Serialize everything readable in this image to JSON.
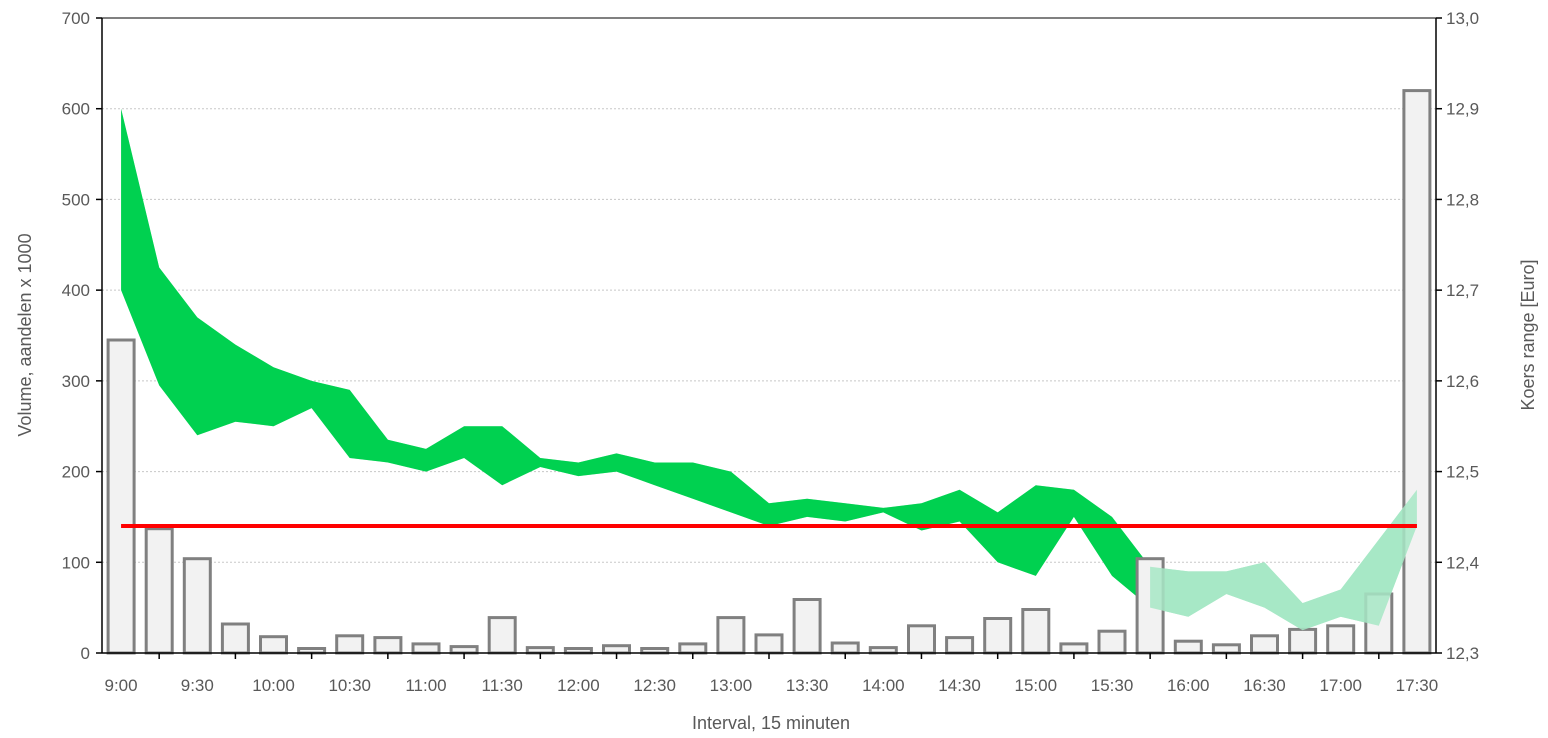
{
  "chart_data": {
    "type": "bar",
    "title": "",
    "xlabel": "Interval, 15 minuten",
    "ylabel_left": "Volume, aandelen x 1000",
    "ylabel_right": "Koers range [Euro]",
    "y_left_lim": [
      0,
      700
    ],
    "y_left_ticks": [
      "0",
      "100",
      "200",
      "300",
      "400",
      "500",
      "600",
      "700"
    ],
    "y_right_lim": [
      12.3,
      13.0
    ],
    "y_right_ticks": [
      "12,3",
      "12,4",
      "12,5",
      "12,6",
      "12,7",
      "12,8",
      "12,9",
      "13,0"
    ],
    "x_tick_labels": [
      "9:00",
      "9:30",
      "10:00",
      "10:30",
      "11:00",
      "11:30",
      "12:00",
      "12:30",
      "13:00",
      "13:30",
      "14:00",
      "14:30",
      "15:00",
      "15:30",
      "16:00",
      "16:30",
      "17:00",
      "17:30"
    ],
    "grid": "horizontal dotted",
    "categories": [
      "9:00",
      "9:15",
      "9:30",
      "9:45",
      "10:00",
      "10:15",
      "10:30",
      "10:45",
      "11:00",
      "11:15",
      "11:30",
      "11:45",
      "12:00",
      "12:15",
      "12:30",
      "12:45",
      "13:00",
      "13:15",
      "13:30",
      "13:45",
      "14:00",
      "14:15",
      "14:30",
      "14:45",
      "15:00",
      "15:15",
      "15:30",
      "15:45",
      "16:00",
      "16:15",
      "16:30",
      "16:45",
      "17:00",
      "17:15",
      "17:30"
    ],
    "volume": [
      345,
      137,
      104,
      32,
      18,
      5,
      19,
      17,
      10,
      7,
      39,
      6,
      5,
      8,
      5,
      10,
      39,
      20,
      59,
      11,
      6,
      30,
      17,
      38,
      48,
      10,
      24,
      104,
      13,
      9,
      19,
      26,
      30,
      65,
      620
    ],
    "range_band": {
      "x_index": [
        0,
        1,
        2,
        3,
        4,
        5,
        6,
        7,
        8,
        9,
        10,
        11,
        12,
        13,
        14,
        15,
        16,
        17,
        18,
        19,
        20,
        21,
        22,
        23,
        24,
        25,
        26,
        27,
        28,
        29,
        30,
        31,
        32,
        33,
        34
      ],
      "high": [
        12.9,
        12.725,
        12.67,
        12.64,
        12.615,
        12.6,
        12.59,
        12.535,
        12.525,
        12.55,
        12.55,
        12.515,
        12.51,
        12.52,
        12.51,
        12.51,
        12.5,
        12.465,
        12.47,
        12.465,
        12.46,
        12.465,
        12.48,
        12.455,
        12.485,
        12.48,
        12.45,
        12.395,
        12.39,
        12.39,
        12.4,
        12.355,
        12.37,
        12.425,
        12.48
      ],
      "low": [
        12.7,
        12.595,
        12.54,
        12.555,
        12.55,
        12.57,
        12.515,
        12.51,
        12.5,
        12.515,
        12.485,
        12.505,
        12.495,
        12.5,
        12.485,
        12.47,
        12.455,
        12.44,
        12.45,
        12.445,
        12.455,
        12.435,
        12.445,
        12.4,
        12.385,
        12.45,
        12.385,
        12.35,
        12.34,
        12.365,
        12.35,
        12.325,
        12.34,
        12.33,
        12.44
      ],
      "color": "#00D150",
      "faded_from_index": 27,
      "faded_color": "#A7E8C6"
    },
    "reference_line": {
      "value": 12.44,
      "color": "#FF0000"
    },
    "bar_fill": "#F2F2F2",
    "bar_stroke": "#808080",
    "text_color": "#595959"
  }
}
